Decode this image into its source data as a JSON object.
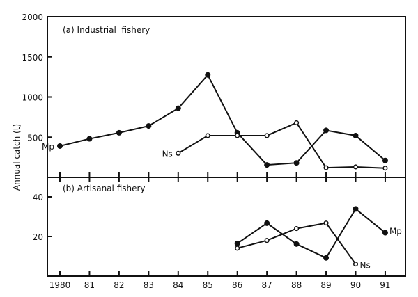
{
  "chart_data": [
    {
      "type": "line",
      "title": "(a) Industrial  fishery",
      "ylabel": "Annual catch (t)",
      "ylim": [
        0,
        2000
      ],
      "yticks": [
        "500",
        "1000",
        "1500",
        "2000"
      ],
      "x": [
        1980,
        1981,
        1982,
        1983,
        1984,
        1985,
        1986,
        1987,
        1988,
        1989,
        1990,
        1991
      ],
      "series": [
        {
          "name": "Mp",
          "marker": "filled",
          "x": [
            1980,
            1981,
            1982,
            1983,
            1984,
            1985,
            1986,
            1987,
            1988,
            1989,
            1990,
            1991
          ],
          "values": [
            390,
            480,
            555,
            640,
            860,
            1275,
            555,
            155,
            180,
            585,
            520,
            210
          ]
        },
        {
          "name": "Ns",
          "marker": "open",
          "x": [
            1984,
            1985,
            1986,
            1987,
            1988,
            1989,
            1990,
            1991
          ],
          "values": [
            300,
            520,
            520,
            520,
            680,
            120,
            130,
            115
          ]
        }
      ]
    },
    {
      "type": "line",
      "title": "(b) Artisanal fishery",
      "ylim": [
        0,
        50
      ],
      "yticks": [
        "20",
        "40"
      ],
      "xticklabels": [
        "1980",
        "81",
        "82",
        "83",
        "84",
        "85",
        "86",
        "87",
        "88",
        "89",
        "90",
        "91"
      ],
      "series": [
        {
          "name": "Mp",
          "marker": "filled",
          "x": [
            1986,
            1987,
            1988,
            1989,
            1990,
            1991
          ],
          "values": [
            16.5,
            26.7,
            16.2,
            9.2,
            33.9,
            21.9
          ]
        },
        {
          "name": "Ns",
          "marker": "open",
          "x": [
            1986,
            1987,
            1988,
            1989,
            1990
          ],
          "values": [
            14.1,
            18.0,
            24.0,
            26.8,
            6.1
          ]
        }
      ]
    }
  ]
}
